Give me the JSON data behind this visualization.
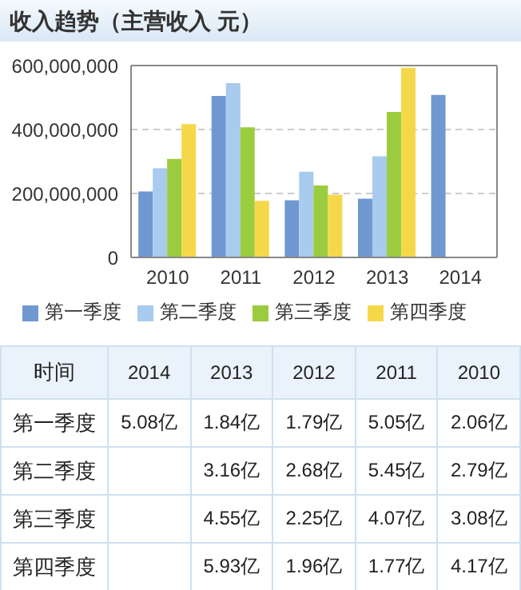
{
  "chart_data": [
    {
      "type": "bar",
      "title": "收入趋势（主营收入 元）",
      "categories": [
        "2010",
        "2011",
        "2012",
        "2013",
        "2014"
      ],
      "series": [
        {
          "name": "第一季度",
          "color": "#6f98d0",
          "values": [
            206000000,
            505000000,
            179000000,
            184000000,
            508000000
          ]
        },
        {
          "name": "第二季度",
          "color": "#a8cbee",
          "values": [
            279000000,
            545000000,
            268000000,
            316000000,
            null
          ]
        },
        {
          "name": "第三季度",
          "color": "#9bcc3f",
          "values": [
            308000000,
            407000000,
            225000000,
            455000000,
            null
          ]
        },
        {
          "name": "第四季度",
          "color": "#f5d84a",
          "values": [
            417000000,
            177000000,
            196000000,
            593000000,
            null
          ]
        }
      ],
      "ylim": [
        0,
        600000000
      ],
      "yticks": [
        {
          "value": 0,
          "label": "0"
        },
        {
          "value": 200000000,
          "label": "200,000,000"
        },
        {
          "value": 400000000,
          "label": "400,000,000"
        },
        {
          "value": 600000000,
          "label": "600,000,000"
        }
      ],
      "grid": "y",
      "legend": "bottom"
    },
    {
      "type": "heatmap",
      "annotations": [
        "时间"
      ],
      "categories": [
        "2014",
        "2013",
        "2012",
        "2011",
        "2010"
      ],
      "y_categories": [
        "第一季度",
        "第二季度",
        "第三季度",
        "第四季度"
      ],
      "cells": [
        [
          5.08,
          1.84,
          1.79,
          5.05,
          2.06
        ],
        [
          null,
          3.16,
          2.68,
          5.45,
          2.79
        ],
        [
          null,
          4.55,
          2.25,
          4.07,
          3.08
        ],
        [
          null,
          5.93,
          1.96,
          1.77,
          4.17
        ]
      ],
      "cell_labels": [
        [
          "5.08亿",
          "1.84亿",
          "1.79亿",
          "5.05亿",
          "2.06亿"
        ],
        [
          null,
          "3.16亿",
          "2.68亿",
          "5.45亿",
          "2.79亿"
        ],
        [
          null,
          "4.55亿",
          "2.25亿",
          "4.07亿",
          "3.08亿"
        ],
        [
          null,
          "5.93亿",
          "1.96亿",
          "1.77亿",
          "4.17亿"
        ]
      ]
    }
  ]
}
